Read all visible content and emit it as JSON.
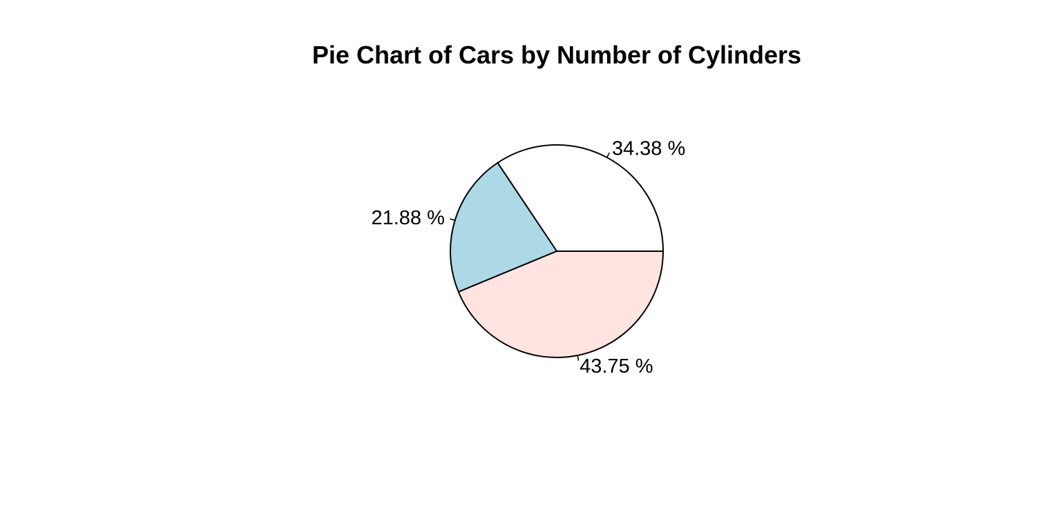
{
  "chart_data": {
    "type": "pie",
    "title": "Pie Chart of Cars by Number of Cylinders",
    "direction": "counterclockwise",
    "start_angle_deg": 0,
    "slices": [
      {
        "label": "34.38 %",
        "value": 34.38,
        "color": "#ffffff"
      },
      {
        "label": "21.88 %",
        "value": 21.88,
        "color": "#add8e6"
      },
      {
        "label": "43.75 %",
        "value": 43.75,
        "color": "#ffe4e1"
      }
    ]
  }
}
